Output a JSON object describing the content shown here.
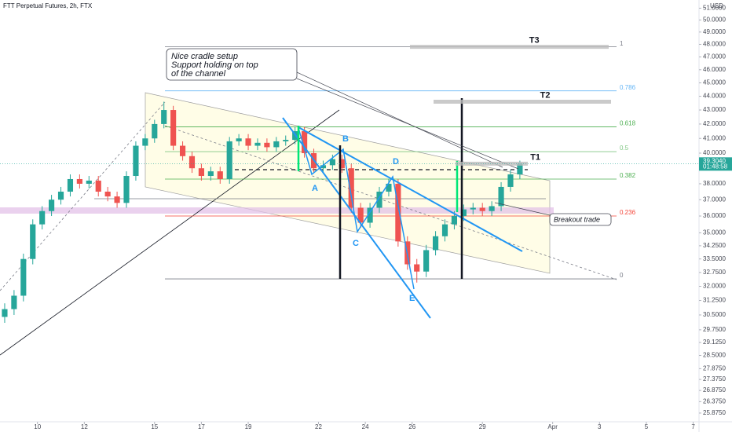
{
  "chart_data": {
    "type": "candlestick",
    "title": "FTT Perpetual Futures, 2h, FTX",
    "currency": "USD",
    "log_scale": true,
    "grid": false,
    "up_color": "#26a69a",
    "down_color": "#ef5350",
    "xlim": [
      8.4,
      38.25
    ],
    "xticks": [
      10,
      12,
      15,
      17,
      19,
      22,
      24,
      26,
      29,
      {
        "value": 32,
        "label": "Apr"
      },
      {
        "value": 34,
        "label": "3"
      },
      {
        "value": 36,
        "label": "5"
      },
      {
        "value": 38,
        "label": "7"
      }
    ],
    "ylim": [
      25.5,
      51.5
    ],
    "yticks": [
      {
        "value": 51,
        "label": "51.0000"
      },
      {
        "value": 50,
        "label": "50.0000"
      },
      {
        "value": 49,
        "label": "49.0000"
      },
      {
        "value": 48,
        "label": "48.0000"
      },
      {
        "value": 47,
        "label": "47.0000"
      },
      {
        "value": 46,
        "label": "46.0000"
      },
      {
        "value": 45,
        "label": "45.0000"
      },
      {
        "value": 44,
        "label": "44.0000"
      },
      {
        "value": 43,
        "label": "43.0000"
      },
      {
        "value": 42,
        "label": "42.0000"
      },
      {
        "value": 41,
        "label": "41.0000"
      },
      {
        "value": 40,
        "label": "40.0000"
      },
      {
        "value": 38,
        "label": "38.0000"
      },
      {
        "value": 37,
        "label": "37.0000"
      },
      {
        "value": 36,
        "label": "36.0000"
      },
      {
        "value": 35,
        "label": "35.0000"
      },
      {
        "value": 34.25,
        "label": "34.2500"
      },
      {
        "value": 33.5,
        "label": "33.5000"
      },
      {
        "value": 32.75,
        "label": "32.7500"
      },
      {
        "value": 32,
        "label": "32.0000"
      },
      {
        "value": 31.25,
        "label": "31.2500"
      },
      {
        "value": 30.5,
        "label": "30.5000"
      },
      {
        "value": 29.75,
        "label": "29.7500"
      },
      {
        "value": 29.125,
        "label": "29.1250"
      },
      {
        "value": 28.5,
        "label": "28.5000"
      },
      {
        "value": 27.875,
        "label": "27.8750"
      },
      {
        "value": 27.375,
        "label": "27.3750"
      },
      {
        "value": 26.875,
        "label": "26.8750"
      },
      {
        "value": 26.375,
        "label": "26.3750"
      },
      {
        "value": 25.875,
        "label": "25.8750"
      }
    ],
    "x": [
      8.6,
      9.0,
      9.4,
      9.8,
      10.2,
      10.6,
      11.0,
      11.4,
      11.8,
      12.2,
      12.6,
      13.0,
      13.4,
      13.8,
      14.2,
      14.6,
      15.0,
      15.4,
      15.8,
      16.2,
      16.6,
      17.0,
      17.4,
      17.8,
      18.2,
      18.6,
      19.0,
      19.4,
      19.8,
      20.2,
      20.6,
      21.0,
      21.4,
      21.8,
      22.2,
      22.6,
      23.0,
      23.4,
      23.8,
      24.2,
      24.6,
      25.0,
      25.4,
      25.8,
      26.2,
      26.6,
      27.0,
      27.4,
      27.8,
      28.2,
      28.6,
      29.0,
      29.4,
      29.8,
      30.2,
      30.6
    ],
    "open": [
      30.4,
      30.8,
      31.5,
      33.5,
      35.5,
      36.3,
      37,
      37.5,
      38.3,
      38,
      38.2,
      37.5,
      37.2,
      36.8,
      38.5,
      40.5,
      41,
      42,
      43,
      40.5,
      39.8,
      39,
      38.5,
      38.8,
      38.3,
      40.8,
      41,
      40.5,
      40.7,
      40.4,
      40.8,
      40.9,
      41.5,
      40,
      39,
      39.2,
      39.6,
      39,
      36.5,
      35.6,
      36.5,
      37.5,
      38,
      34.5,
      33.2,
      32.8,
      34,
      34.8,
      35.5,
      36,
      36.4,
      36.5,
      36.3,
      36.6,
      37.8,
      38.6
    ],
    "high": [
      31.1,
      31.8,
      33.8,
      35.8,
      36.6,
      37.3,
      37.8,
      38.6,
      38.6,
      38.5,
      38.5,
      37.8,
      37.5,
      38.8,
      40.8,
      41.3,
      42.3,
      43.6,
      43.3,
      40.8,
      40.1,
      39.3,
      39.1,
      39.1,
      41.1,
      41.3,
      41.3,
      41.0,
      41.0,
      41.1,
      41.2,
      41.8,
      41.8,
      40.3,
      39.5,
      39.9,
      39.9,
      39.3,
      36.8,
      36.8,
      37.8,
      38.3,
      38.3,
      34.8,
      33.5,
      34.3,
      35.1,
      35.8,
      36.3,
      36.7,
      36.8,
      36.8,
      36.9,
      38.1,
      38.9,
      39.5
    ],
    "low": [
      30.1,
      30.5,
      31.2,
      33.2,
      35.2,
      36.0,
      36.7,
      37.2,
      37.7,
      37.7,
      37.2,
      36.9,
      36.5,
      36.5,
      38.2,
      40.2,
      40.7,
      41.7,
      40.2,
      39.5,
      38.7,
      38.2,
      38.2,
      38.0,
      38.0,
      40.5,
      40.2,
      40.2,
      40.1,
      40.1,
      40.5,
      40.6,
      39.7,
      38.7,
      38.7,
      38.9,
      38.7,
      36.2,
      35.3,
      35.3,
      36.2,
      37.2,
      34.2,
      32.9,
      32.2,
      32.5,
      33.7,
      34.5,
      35.2,
      35.7,
      36.1,
      36.0,
      36.0,
      36.3,
      37.5,
      38.3
    ],
    "close": [
      30.8,
      31.5,
      33.5,
      35.5,
      36.3,
      37,
      37.5,
      38.3,
      38,
      38.2,
      37.5,
      37.2,
      36.8,
      38.5,
      40.5,
      41,
      42,
      43,
      40.5,
      39.8,
      39,
      38.5,
      38.8,
      38.3,
      40.8,
      41,
      40.5,
      40.7,
      40.4,
      40.8,
      40.9,
      41.5,
      40,
      39,
      39.2,
      39.6,
      39,
      36.5,
      35.6,
      36.5,
      37.5,
      38,
      34.5,
      33.2,
      32.8,
      34,
      34.8,
      35.5,
      36,
      36.4,
      36.5,
      36.3,
      36.6,
      37.8,
      38.6,
      39.3
    ],
    "last_price": {
      "value": 39.304,
      "label": "39.3040"
    },
    "countdown": "01:48:58",
    "fib_levels": [
      {
        "ratio": 1,
        "price": 47.8,
        "color": "#787b86"
      },
      {
        "ratio": 0.786,
        "price": 44.4,
        "color": "#64b5f6"
      },
      {
        "ratio": 0.618,
        "price": 41.8,
        "color": "#4caf50"
      },
      {
        "ratio": 0.5,
        "price": 40.1,
        "color": "#81c784"
      },
      {
        "ratio": 0.382,
        "price": 38.3,
        "color": "#4caf50"
      },
      {
        "ratio": 0.236,
        "price": 36.0,
        "color": "#f44336"
      },
      {
        "ratio": 0,
        "price": 32.4,
        "color": "#787b86"
      }
    ],
    "targets": [
      {
        "label": "T3",
        "price": 47.8
      },
      {
        "label": "T2",
        "price": 43.6
      },
      {
        "label": "T1",
        "price": 39.3
      }
    ],
    "wave_labels": [
      "A",
      "B",
      "C",
      "D",
      "E"
    ],
    "note_lines": [
      "Nice cradle setup",
      "Support holding on top",
      "of the channel"
    ],
    "breakout_note": "Breakout trade"
  }
}
